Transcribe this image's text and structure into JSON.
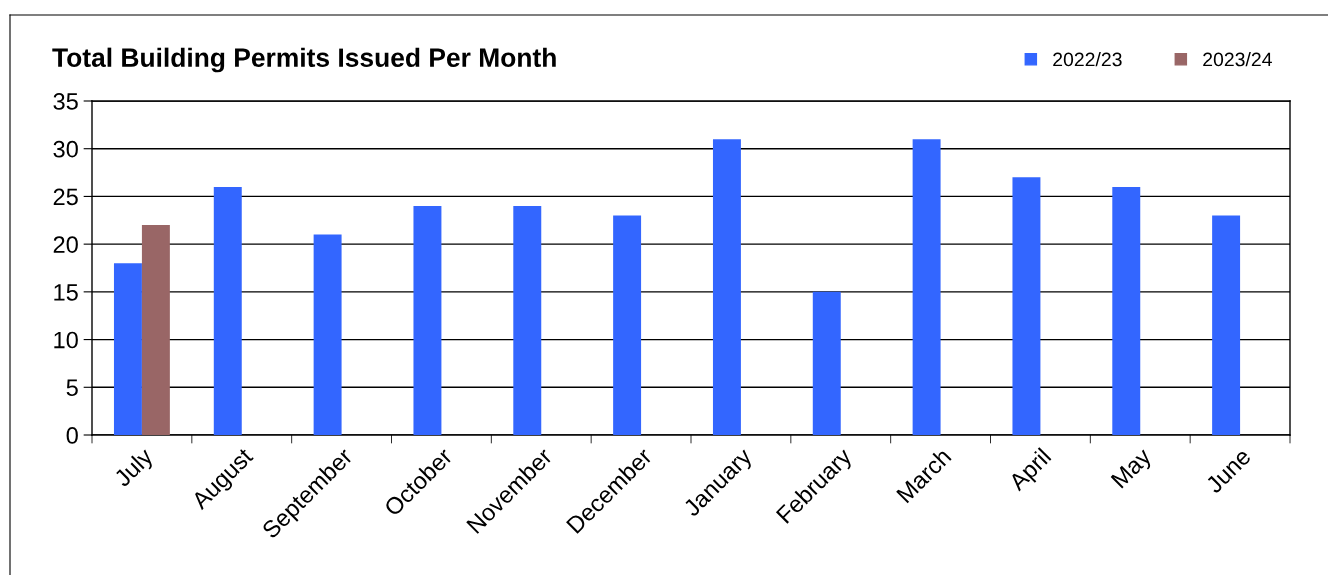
{
  "chart_data": {
    "type": "bar",
    "title": "Total Building Permits Issued Per Month",
    "categories": [
      "July",
      "August",
      "September",
      "October",
      "November",
      "December",
      "January",
      "February",
      "March",
      "April",
      "May",
      "June"
    ],
    "series": [
      {
        "name": "2022/23",
        "color": "#3366ff",
        "values": [
          18,
          26,
          21,
          24,
          24,
          23,
          31,
          15,
          31,
          27,
          26,
          23
        ]
      },
      {
        "name": "2023/24",
        "color": "#996666",
        "values": [
          22,
          null,
          null,
          null,
          null,
          null,
          null,
          null,
          null,
          null,
          null,
          null
        ]
      }
    ],
    "ylim": [
      0,
      35
    ],
    "yticks": [
      0,
      5,
      10,
      15,
      20,
      25,
      30,
      35
    ],
    "grid": "y",
    "legend": "top right"
  }
}
